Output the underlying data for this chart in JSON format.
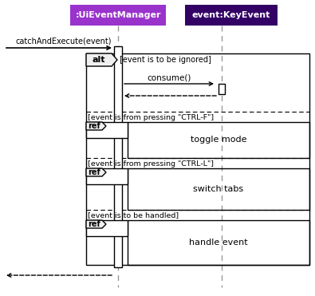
{
  "bg_color": "#ffffff",
  "lifeline1_label": ":UiEventManager",
  "lifeline2_label": "event:KeyEvent",
  "lifeline1_box_color": "#9933CC",
  "lifeline2_box_color": "#330066",
  "call_label": "catchAndExecute(event)",
  "alt_label": "alt",
  "guard_ignored": "[event is to be ignored]",
  "guard_ctrlf": "[event is from pressing \"CTRL-F\"]",
  "guard_ctrll": "[event is from pressing \"CTRL-L\"]",
  "guard_handled": "[event is to be handled]",
  "consume_label": "consume()",
  "toggle_label": "toggle mode",
  "switchtabs_label": "switch tabs",
  "handleevent_label": "handle event",
  "ref_label": "ref"
}
